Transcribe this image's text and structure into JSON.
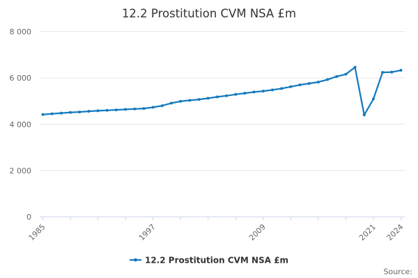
{
  "colors": {
    "series_blue": "#147abd",
    "gridline": "#e6e6e6",
    "axis_line": "#ccd6eb",
    "title_text": "#333333",
    "muted_text": "#666666"
  },
  "legend": {
    "label": "12.2 Prostitution CVM NSA £m"
  },
  "source": {
    "label": "Source:"
  },
  "chart_data": {
    "type": "line",
    "title": "12.2 Prostitution CVM NSA £m",
    "xlabel": "",
    "ylabel": "",
    "x": [
      1985,
      1986,
      1987,
      1988,
      1989,
      1990,
      1991,
      1992,
      1993,
      1994,
      1995,
      1996,
      1997,
      1998,
      1999,
      2000,
      2001,
      2002,
      2003,
      2004,
      2005,
      2006,
      2007,
      2008,
      2009,
      2010,
      2011,
      2012,
      2013,
      2014,
      2015,
      2016,
      2017,
      2018,
      2019,
      2020,
      2021,
      2022,
      2023,
      2024
    ],
    "series": [
      {
        "name": "12.2 Prostitution CVM NSA £m",
        "color": "#147abd",
        "values": [
          4420,
          4450,
          4480,
          4510,
          4530,
          4560,
          4580,
          4600,
          4620,
          4640,
          4660,
          4680,
          4730,
          4800,
          4910,
          4990,
          5030,
          5070,
          5120,
          5180,
          5230,
          5290,
          5340,
          5390,
          5430,
          5480,
          5540,
          5620,
          5700,
          5760,
          5820,
          5930,
          6060,
          6160,
          6460,
          4400,
          5090,
          6240,
          6250,
          6330
        ]
      }
    ],
    "ylim": [
      0,
      8000
    ],
    "yticks": [
      {
        "value": 0,
        "label": "0"
      },
      {
        "value": 2000,
        "label": "2 000"
      },
      {
        "value": 4000,
        "label": "4 000"
      },
      {
        "value": 6000,
        "label": "6 000"
      },
      {
        "value": 8000,
        "label": "8 000"
      }
    ],
    "x_minor_ticks": [
      1985,
      1988,
      1991,
      1994,
      1997,
      2000,
      2003,
      2006,
      2009,
      2012,
      2015,
      2018,
      2021,
      2024
    ],
    "x_labeled_ticks": [
      "1985",
      "1997",
      "2009",
      "2021",
      "2024"
    ],
    "x_labeled_tick_years": [
      1985,
      1997,
      2009,
      2021,
      2024
    ],
    "grid": true,
    "legend_position": "bottom-center",
    "marker": "circle"
  }
}
